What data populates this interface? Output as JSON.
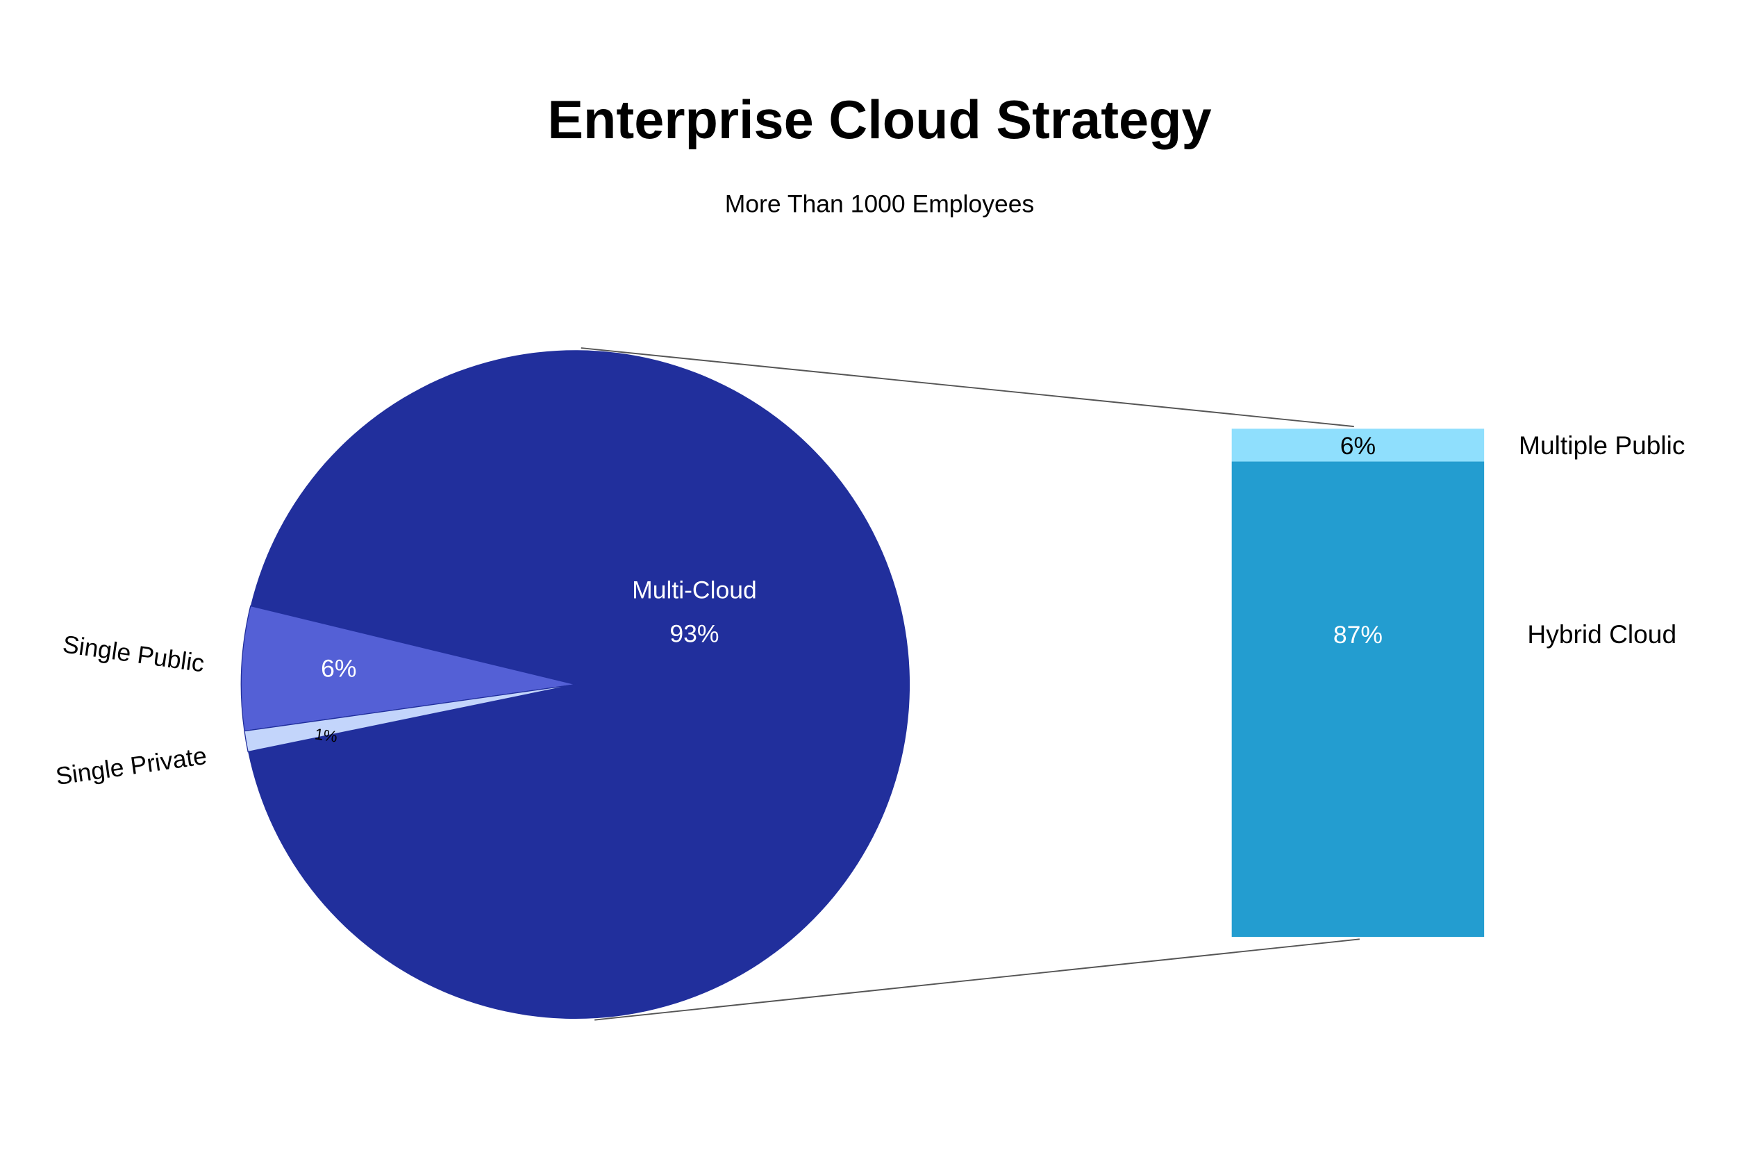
{
  "chart_data": {
    "type": "pie",
    "title": "Enterprise Cloud Strategy",
    "subtitle": "More Than 1000 Employees",
    "pie": {
      "slices": [
        {
          "name": "Multi-Cloud",
          "value": 93,
          "label": "93%",
          "color": "#212f9c"
        },
        {
          "name": "Single Public",
          "value": 6,
          "label": "6%",
          "color": "#5460d6"
        },
        {
          "name": "Single Private",
          "value": 1,
          "label": "1%",
          "color": "#c3d5fb"
        }
      ]
    },
    "breakdown": {
      "of": "Multi-Cloud",
      "type": "stacked-bar",
      "segments": [
        {
          "name": "Multiple Public",
          "value": 6,
          "label": "6%",
          "color": "#8fdffd"
        },
        {
          "name": "Hybrid Cloud",
          "value": 87,
          "label": "87%",
          "color": "#239dd0"
        }
      ]
    }
  }
}
